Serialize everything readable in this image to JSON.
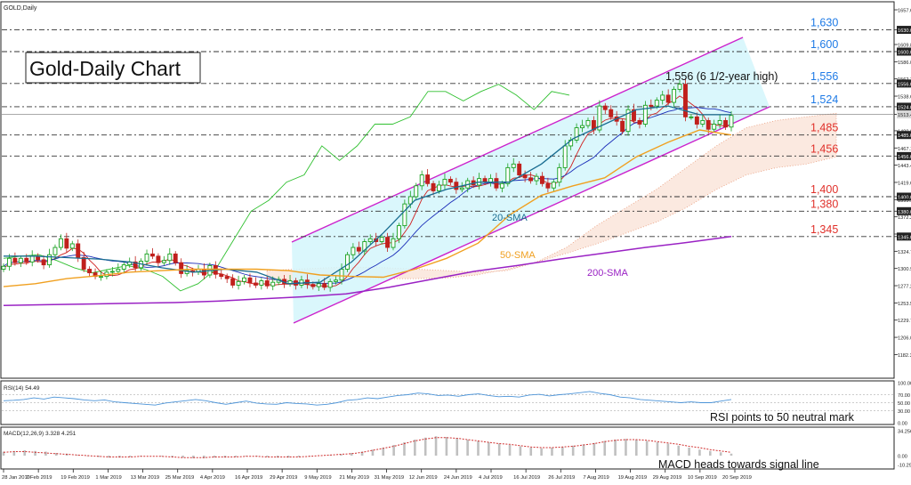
{
  "chart_data": {
    "type": "candlestick",
    "symbol_label": "GOLD,Daily",
    "title": "Gold-Daily Chart",
    "price_ticks": [
      "1657.64",
      "1630.00",
      "1609.80",
      "1600.00",
      "1586.07",
      "1562.34",
      "1556.00",
      "1538.61",
      "1524.00",
      "1513.44",
      "1490.87",
      "1485.00",
      "1467.14",
      "1456.00",
      "1443.40",
      "1419.67",
      "1400.00",
      "1395.93",
      "1380.00",
      "1372.20",
      "1348.46",
      "1345.00",
      "1324.73",
      "1300.99",
      "1277.26",
      "1253.52",
      "1229.78",
      "1206.05",
      "1182.31"
    ],
    "current_price": "1513.44",
    "levels": [
      {
        "label": "1,630",
        "value": 1630,
        "color": "#1e7ae6"
      },
      {
        "label": "1,600",
        "value": 1600,
        "color": "#1e7ae6"
      },
      {
        "label": "1,556",
        "value": 1556,
        "color": "#1e7ae6"
      },
      {
        "label": "1,524",
        "value": 1524,
        "color": "#1e7ae6"
      },
      {
        "label": "1,485",
        "value": 1485,
        "color": "#e0302a"
      },
      {
        "label": "1,456",
        "value": 1456,
        "color": "#e0302a"
      },
      {
        "label": "1,400",
        "value": 1400,
        "color": "#e0302a"
      },
      {
        "label": "1,380",
        "value": 1380,
        "color": "#e0302a"
      },
      {
        "label": "1,345",
        "value": 1345,
        "color": "#e0302a"
      }
    ],
    "annotations": {
      "high_note": "1,556 (6 1/2-year high)",
      "sma20": "20-SMA",
      "sma50": "50-SMA",
      "sma200": "200-SMA"
    },
    "date_labels": [
      "28 Jan 2019",
      "7 Feb 2019",
      "19 Feb 2019",
      "1 Mar 2019",
      "13 Mar 2019",
      "25 Mar 2019",
      "4 Apr 2019",
      "16 Apr 2019",
      "29 Apr 2019",
      "9 May 2019",
      "21 May 2019",
      "31 May 2019",
      "12 Jun 2019",
      "24 Jun 2019",
      "4 Jul 2019",
      "16 Jul 2019",
      "26 Jul 2019",
      "7 Aug 2019",
      "19 Aug 2019",
      "29 Aug 2019",
      "10 Sep 2019",
      "20 Sep 2019"
    ],
    "closes": [
      1304,
      1315,
      1309,
      1315,
      1310,
      1318,
      1313,
      1306,
      1320,
      1330,
      1342,
      1329,
      1335,
      1316,
      1300,
      1295,
      1290,
      1290,
      1296,
      1297,
      1300,
      1306,
      1310,
      1302,
      1311,
      1321,
      1318,
      1309,
      1312,
      1321,
      1309,
      1294,
      1298,
      1296,
      1300,
      1292,
      1305,
      1293,
      1290,
      1287,
      1278,
      1283,
      1288,
      1281,
      1278,
      1284,
      1277,
      1282,
      1286,
      1280,
      1284,
      1278,
      1285,
      1279,
      1276,
      1280,
      1275,
      1283,
      1285,
      1300,
      1320,
      1330,
      1325,
      1338,
      1342,
      1338,
      1344,
      1330,
      1342,
      1360,
      1390,
      1400,
      1415,
      1430,
      1418,
      1408,
      1416,
      1424,
      1420,
      1410,
      1412,
      1422,
      1416,
      1425,
      1420,
      1425,
      1412,
      1418,
      1440,
      1445,
      1430,
      1426,
      1422,
      1428,
      1418,
      1412,
      1420,
      1440,
      1470,
      1478,
      1495,
      1498,
      1505,
      1492,
      1525,
      1520,
      1510,
      1504,
      1490,
      1520,
      1505,
      1500,
      1526,
      1525,
      1533,
      1540,
      1530,
      1548,
      1555,
      1510,
      1510,
      1500,
      1505,
      1493,
      1500,
      1505,
      1496,
      1512
    ],
    "sma20_values": [
      1318,
      1318,
      1316,
      1314,
      1310,
      1302,
      1296,
      1300,
      1296,
      1280,
      1282,
      1310,
      1350,
      1395,
      1410,
      1420,
      1420,
      1445,
      1480,
      1500,
      1520,
      1525,
      1513,
      1513
    ],
    "sma50_values": [
      1276,
      1280,
      1287,
      1291,
      1296,
      1298,
      1300,
      1300,
      1300,
      1298,
      1292,
      1290,
      1289,
      1300,
      1315,
      1336,
      1375,
      1402,
      1415,
      1426,
      1455,
      1475,
      1492,
      1485
    ],
    "sma200_values": [
      1250,
      1251,
      1252,
      1253,
      1254,
      1256,
      1259,
      1262,
      1266,
      1275,
      1286,
      1297,
      1305,
      1314,
      1322,
      1330,
      1337,
      1345
    ],
    "rsi": {
      "label": "RSI(14) 54.49",
      "ticks": [
        "100.00",
        "70.00",
        "50.00",
        "30.00",
        "0.00"
      ],
      "values": [
        55,
        56,
        58,
        62,
        59,
        64,
        62,
        60,
        57,
        55,
        57,
        52,
        50,
        48,
        46,
        44,
        49,
        52,
        55,
        58,
        55,
        50,
        46,
        50,
        54,
        49,
        47,
        46,
        50,
        48,
        47,
        44,
        46,
        50,
        56,
        58,
        62,
        60,
        64,
        68,
        70,
        74,
        72,
        68,
        69,
        66,
        70,
        72,
        68,
        65,
        66,
        64,
        69,
        71,
        67,
        70,
        72,
        75,
        78,
        73,
        70,
        64,
        62,
        58,
        56,
        54,
        52,
        50,
        52,
        50,
        50,
        54,
        58
      ],
      "note": "RSI points to 50 neutral mark"
    },
    "macd": {
      "label": "MACD(12,26,9) 3.328 4.251",
      "ticks": [
        "34.256",
        "0.00",
        "-10.2926"
      ],
      "histogram": [
        6,
        7,
        8,
        7,
        6,
        4,
        3,
        1,
        -1,
        -2,
        -3,
        -3,
        -2,
        -1,
        0,
        -1,
        -2,
        -3,
        -4,
        -4,
        -3,
        -3,
        -2,
        -1,
        -1,
        -2,
        -3,
        -3,
        -2,
        -1,
        0,
        1,
        2,
        4,
        6,
        9,
        12,
        16,
        20,
        24,
        27,
        29,
        28,
        26,
        24,
        22,
        20,
        18,
        16,
        14,
        12,
        11,
        12,
        13,
        15,
        17,
        19,
        22,
        24,
        25,
        24,
        22,
        20,
        18,
        15,
        12,
        9,
        7,
        5,
        3
      ],
      "signal": [
        5,
        6,
        6,
        5,
        4,
        3,
        2,
        1,
        0,
        -1,
        -2,
        -2,
        -2,
        -1,
        -1,
        -1,
        -2,
        -3,
        -3,
        -3,
        -2,
        -2,
        -2,
        -1,
        -1,
        -2,
        -2,
        -2,
        -2,
        -1,
        0,
        1,
        2,
        3,
        5,
        8,
        11,
        14,
        18,
        22,
        25,
        27,
        27,
        26,
        24,
        22,
        20,
        18,
        17,
        15,
        13,
        12,
        12,
        13,
        14,
        16,
        18,
        21,
        23,
        24,
        24,
        23,
        21,
        19,
        17,
        14,
        12,
        9,
        7,
        5
      ],
      "note": "MACD heads towards signal line"
    },
    "colors": {
      "channel": "#cc22cc",
      "channel_fill": "#d4f6fb",
      "sma20": "#1a6d91",
      "sma50": "#f0a020",
      "sma200": "#9a22c4",
      "price_line": "#1a2cb8",
      "fast_line": "#d02020",
      "lagging_line": "#30c030",
      "cloud": "#e89a7a",
      "bull": "#17a01e",
      "bear": "#c0201c",
      "rsi_line": "#4c94d8",
      "macd_hist": "#c0c0c0",
      "macd_signal": "#d03030"
    }
  }
}
